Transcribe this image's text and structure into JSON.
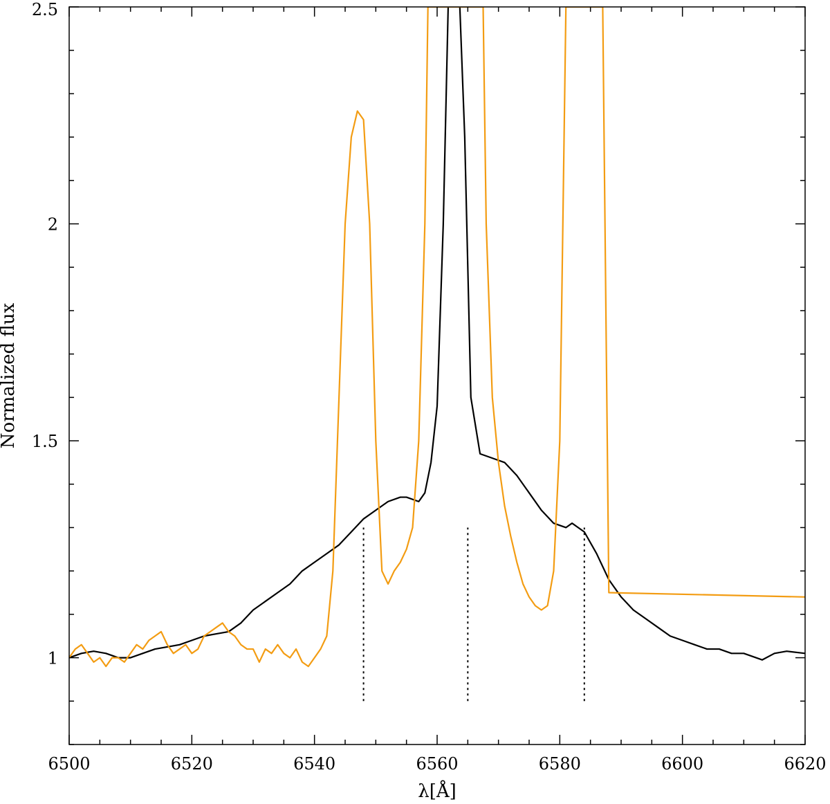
{
  "chart_data": {
    "type": "line",
    "xlabel": "λ[Å]",
    "ylabel": "Normalized flux",
    "xlim": [
      6500,
      6620
    ],
    "ylim": [
      0.8,
      2.5
    ],
    "x_ticks": [
      6500,
      6520,
      6540,
      6560,
      6580,
      6600,
      6620
    ],
    "x_tick_labels": [
      "6500",
      "6520",
      "6540",
      "6560",
      "6580",
      "6600",
      "6620"
    ],
    "y_ticks": [
      1,
      1.5,
      2,
      2.5
    ],
    "y_tick_labels": [
      "1",
      "1.5",
      "2",
      "2.5"
    ],
    "grid": false,
    "series": [
      {
        "color": "#000000",
        "x": [
          6500,
          6502,
          6504,
          6506,
          6508,
          6510,
          6512,
          6514,
          6516,
          6518,
          6520,
          6522,
          6524,
          6526,
          6528,
          6530,
          6532,
          6534,
          6536,
          6538,
          6540,
          6542,
          6544,
          6546,
          6548,
          6550,
          6552,
          6554,
          6555,
          6557,
          6558,
          6559,
          6560,
          6561,
          6561.8,
          6562.3,
          6563,
          6563.7,
          6564.5,
          6565.5,
          6567,
          6569,
          6571,
          6573,
          6575,
          6577,
          6579,
          6581,
          6582,
          6583,
          6584,
          6586,
          6588,
          6590,
          6592,
          6594,
          6596,
          6598,
          6600,
          6602,
          6604,
          6606,
          6608,
          6610,
          6612,
          6613,
          6615,
          6617,
          6620
        ],
        "y": [
          1.0,
          1.01,
          1.015,
          1.01,
          1.0,
          1.0,
          1.01,
          1.02,
          1.025,
          1.03,
          1.04,
          1.05,
          1.055,
          1.06,
          1.08,
          1.11,
          1.13,
          1.15,
          1.17,
          1.2,
          1.22,
          1.24,
          1.26,
          1.29,
          1.32,
          1.34,
          1.36,
          1.37,
          1.37,
          1.36,
          1.38,
          1.45,
          1.58,
          2.0,
          2.5,
          2.6,
          2.6,
          2.5,
          2.2,
          1.6,
          1.47,
          1.46,
          1.45,
          1.42,
          1.38,
          1.34,
          1.31,
          1.3,
          1.31,
          1.3,
          1.29,
          1.24,
          1.18,
          1.14,
          1.11,
          1.09,
          1.07,
          1.05,
          1.04,
          1.03,
          1.02,
          1.02,
          1.01,
          1.01,
          1.0,
          0.995,
          1.01,
          1.015,
          1.01
        ]
      },
      {
        "color": "#F39C12",
        "x": [
          6500,
          6501,
          6502,
          6503,
          6504,
          6505,
          6506,
          6507,
          6508,
          6509,
          6510,
          6511,
          6512,
          6513,
          6514,
          6515,
          6516,
          6517,
          6518,
          6519,
          6520,
          6521,
          6522,
          6523,
          6524,
          6525,
          6526,
          6527,
          6528,
          6529,
          6530,
          6531,
          6532,
          6533,
          6534,
          6535,
          6536,
          6537,
          6538,
          6539,
          6540,
          6541,
          6542,
          6543,
          6544,
          6545,
          6546,
          6547,
          6548,
          6549,
          6550,
          6551,
          6552,
          6553,
          6554,
          6555,
          6556,
          6557,
          6558,
          6558.5,
          6567.5,
          6568,
          6569,
          6570,
          6571,
          6572,
          6573,
          6574,
          6575,
          6576,
          6577,
          6578,
          6579,
          6580,
          6580.5,
          6581,
          6587,
          6588,
          6620
        ],
        "y": [
          1.0,
          1.02,
          1.03,
          1.01,
          0.99,
          1.0,
          0.98,
          1.0,
          1.0,
          0.99,
          1.01,
          1.03,
          1.02,
          1.04,
          1.05,
          1.06,
          1.03,
          1.01,
          1.02,
          1.03,
          1.01,
          1.02,
          1.05,
          1.06,
          1.07,
          1.08,
          1.06,
          1.05,
          1.03,
          1.02,
          1.02,
          0.99,
          1.02,
          1.01,
          1.03,
          1.01,
          1.0,
          1.02,
          0.99,
          0.98,
          1.0,
          1.02,
          1.05,
          1.2,
          1.6,
          2.0,
          2.2,
          2.26,
          2.24,
          2.0,
          1.5,
          1.2,
          1.17,
          1.2,
          1.22,
          1.25,
          1.3,
          1.5,
          2.0,
          2.5,
          2.5,
          2.0,
          1.6,
          1.45,
          1.35,
          1.28,
          1.22,
          1.17,
          1.14,
          1.12,
          1.11,
          1.12,
          1.2,
          1.5,
          2.0,
          2.5,
          2.5,
          1.15,
          1.14
        ]
      }
    ],
    "vertical_markers": [
      {
        "x": 6548,
        "y_range": [
          0.9,
          1.3
        ],
        "style": "dotted"
      },
      {
        "x": 6565,
        "y_range": [
          0.9,
          1.3
        ],
        "style": "dotted"
      },
      {
        "x": 6584,
        "y_range": [
          0.9,
          1.3
        ],
        "style": "dotted"
      }
    ]
  }
}
